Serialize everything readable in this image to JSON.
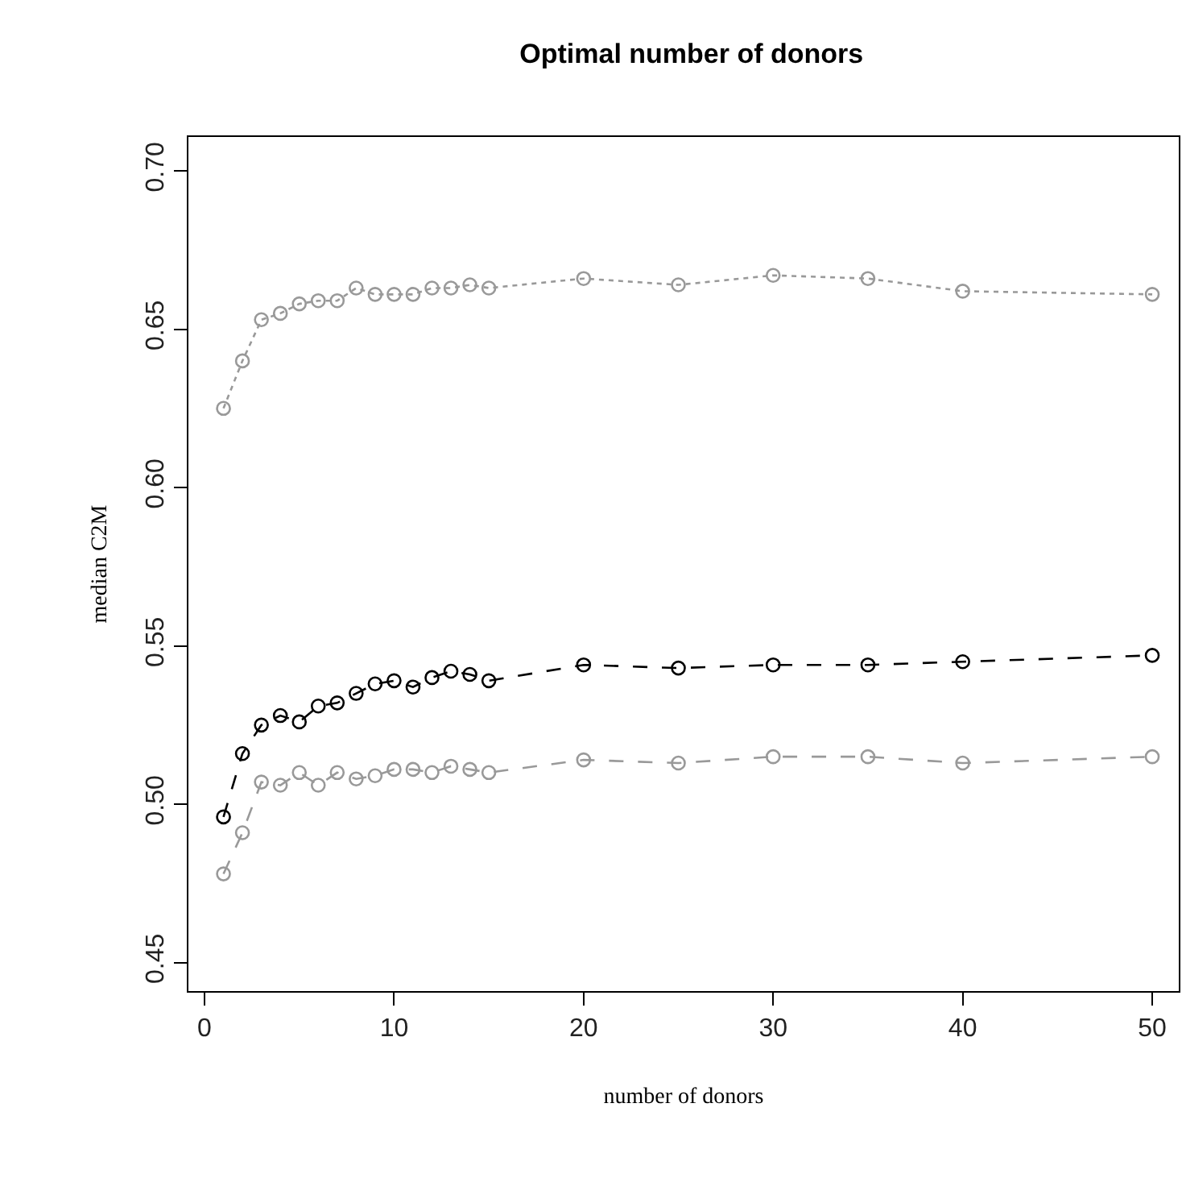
{
  "chart_data": {
    "type": "line",
    "title": "Optimal number of donors",
    "xlabel": "number of donors",
    "ylabel": "median C2M",
    "x": [
      1,
      2,
      3,
      4,
      5,
      6,
      7,
      8,
      9,
      10,
      11,
      12,
      13,
      14,
      15,
      20,
      25,
      30,
      35,
      40,
      50
    ],
    "series": [
      {
        "color": "#999999",
        "line_style": "dotted",
        "values": [
          0.625,
          0.64,
          0.653,
          0.655,
          0.658,
          0.659,
          0.659,
          0.663,
          0.661,
          0.661,
          0.661,
          0.663,
          0.663,
          0.664,
          0.663,
          0.666,
          0.664,
          0.667,
          0.666,
          0.662,
          0.661
        ]
      },
      {
        "color": "#000000",
        "line_style": "dashed",
        "values": [
          0.496,
          0.516,
          0.525,
          0.528,
          0.526,
          0.531,
          0.532,
          0.535,
          0.538,
          0.539,
          0.537,
          0.54,
          0.542,
          0.541,
          0.539,
          0.544,
          0.543,
          0.544,
          0.544,
          0.545,
          0.547
        ]
      },
      {
        "color": "#999999",
        "line_style": "dashed",
        "values": [
          0.478,
          0.491,
          0.507,
          0.506,
          0.51,
          0.506,
          0.51,
          0.508,
          0.509,
          0.511,
          0.511,
          0.51,
          0.512,
          0.511,
          0.51,
          0.514,
          0.513,
          0.515,
          0.515,
          0.513,
          0.515
        ]
      }
    ],
    "marker": "circle",
    "xlim": [
      -0.85,
      51.4
    ],
    "ylim": [
      0.441,
      0.7107
    ],
    "xticks": [
      0,
      10,
      20,
      30,
      40,
      50
    ],
    "yticks": [
      {
        "value": 0.45,
        "label": "0.45"
      },
      {
        "value": 0.5,
        "label": "0.50"
      },
      {
        "value": 0.55,
        "label": "0.55"
      },
      {
        "value": 0.6,
        "label": "0.60"
      },
      {
        "value": 0.65,
        "label": "0.65"
      },
      {
        "value": 0.7,
        "label": "0.70"
      }
    ]
  }
}
